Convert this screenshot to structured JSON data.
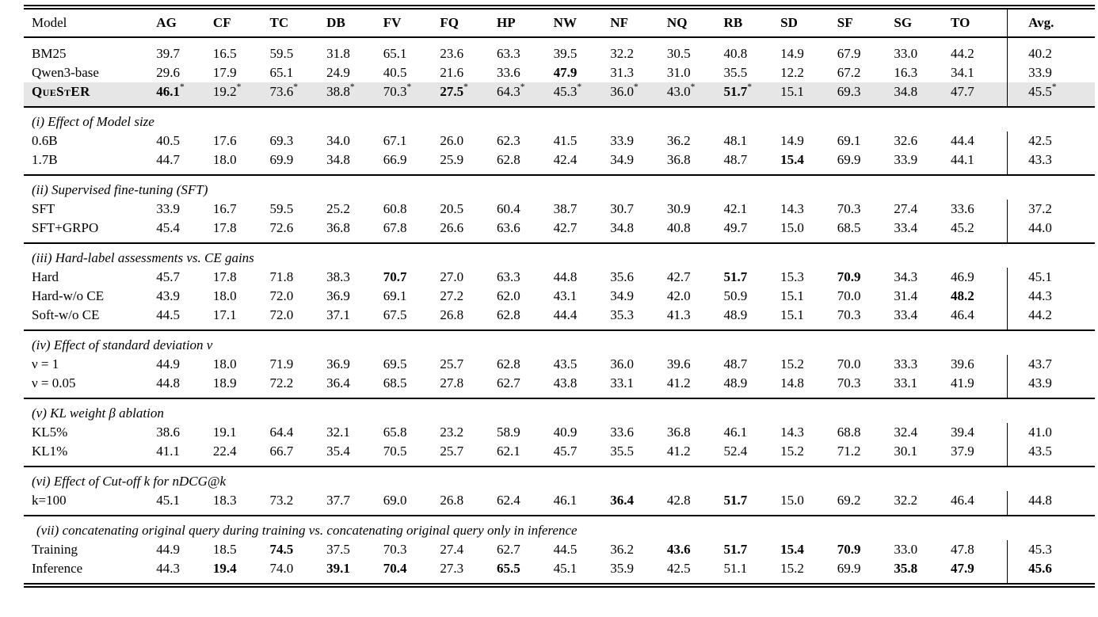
{
  "page": {
    "background_color": "#ffffff",
    "text_color": "#000000",
    "highlight_color": "#e6e6e6",
    "star_symbol": "*"
  },
  "table": {
    "header": {
      "model_col": "Model",
      "metric_cols": [
        "AG",
        "CF",
        "TC",
        "DB",
        "FV",
        "FQ",
        "HP",
        "NW",
        "NF",
        "NQ",
        "RB",
        "SD",
        "SF",
        "SG",
        "TO"
      ],
      "avg_col": "Avg."
    },
    "sections": [
      {
        "title": "",
        "rows": [
          {
            "label": "BM25",
            "values": [
              "39.7",
              "16.5",
              "59.5",
              "31.8",
              "65.1",
              "23.6",
              "63.3",
              "39.5",
              "32.2",
              "30.5",
              "40.8",
              "14.9",
              "67.9",
              "33.0",
              "44.2",
              "40.2"
            ],
            "bold": [],
            "star": []
          },
          {
            "label": "Qwen3-base",
            "values": [
              "29.6",
              "17.9",
              "65.1",
              "24.9",
              "40.5",
              "21.6",
              "33.6",
              "47.9",
              "31.3",
              "31.0",
              "35.5",
              "12.2",
              "67.2",
              "16.3",
              "34.1",
              "33.9"
            ],
            "bold": [
              7
            ],
            "star": []
          },
          {
            "label": "QueStER",
            "smallcaps": true,
            "bold_label": true,
            "highlight": true,
            "values": [
              "46.1",
              "19.2",
              "73.6",
              "38.8",
              "70.3",
              "27.5",
              "64.3",
              "45.3",
              "36.0",
              "43.0",
              "51.7",
              "15.1",
              "69.3",
              "34.8",
              "47.7",
              "45.5"
            ],
            "bold": [
              0,
              5,
              10
            ],
            "star": [
              0,
              1,
              2,
              3,
              4,
              5,
              6,
              7,
              8,
              9,
              10,
              15
            ]
          }
        ]
      },
      {
        "title": "(i) Effect of Model size",
        "rows": [
          {
            "label": "0.6B",
            "values": [
              "40.5",
              "17.6",
              "69.3",
              "34.0",
              "67.1",
              "26.0",
              "62.3",
              "41.5",
              "33.9",
              "36.2",
              "48.1",
              "14.9",
              "69.1",
              "32.6",
              "44.4",
              "42.5"
            ],
            "bold": [],
            "star": []
          },
          {
            "label": "1.7B",
            "values": [
              "44.7",
              "18.0",
              "69.9",
              "34.8",
              "66.9",
              "25.9",
              "62.8",
              "42.4",
              "34.9",
              "36.8",
              "48.7",
              "15.4",
              "69.9",
              "33.9",
              "44.1",
              "43.3"
            ],
            "bold": [
              11
            ],
            "star": []
          }
        ]
      },
      {
        "title": "(ii) Supervised fine-tuning (SFT)",
        "rows": [
          {
            "label": "SFT",
            "values": [
              "33.9",
              "16.7",
              "59.5",
              "25.2",
              "60.8",
              "20.5",
              "60.4",
              "38.7",
              "30.7",
              "30.9",
              "42.1",
              "14.3",
              "70.3",
              "27.4",
              "33.6",
              "37.2"
            ],
            "bold": [],
            "star": []
          },
          {
            "label": "SFT+GRPO",
            "values": [
              "45.4",
              "17.8",
              "72.6",
              "36.8",
              "67.8",
              "26.6",
              "63.6",
              "42.7",
              "34.8",
              "40.8",
              "49.7",
              "15.0",
              "68.5",
              "33.4",
              "45.2",
              "44.0"
            ],
            "bold": [],
            "star": []
          }
        ]
      },
      {
        "title": "(iii) Hard-label assessments vs. CE gains",
        "rows": [
          {
            "label": "Hard",
            "values": [
              "45.7",
              "17.8",
              "71.8",
              "38.3",
              "70.7",
              "27.0",
              "63.3",
              "44.8",
              "35.6",
              "42.7",
              "51.7",
              "15.3",
              "70.9",
              "34.3",
              "46.9",
              "45.1"
            ],
            "bold": [
              4,
              10,
              12
            ],
            "star": []
          },
          {
            "label": "Hard-w/o CE",
            "values": [
              "43.9",
              "18.0",
              "72.0",
              "36.9",
              "69.1",
              "27.2",
              "62.0",
              "43.1",
              "34.9",
              "42.0",
              "50.9",
              "15.1",
              "70.0",
              "31.4",
              "48.2",
              "44.3"
            ],
            "bold": [
              14
            ],
            "star": []
          },
          {
            "label": "Soft-w/o CE",
            "values": [
              "44.5",
              "17.1",
              "72.0",
              "37.1",
              "67.5",
              "26.8",
              "62.8",
              "44.4",
              "35.3",
              "41.3",
              "48.9",
              "15.1",
              "70.3",
              "33.4",
              "46.4",
              "44.2"
            ],
            "bold": [],
            "star": []
          }
        ]
      },
      {
        "title": "(iv) Effect of standard deviation ν",
        "rows": [
          {
            "label": "ν = 1",
            "values": [
              "44.9",
              "18.0",
              "71.9",
              "36.9",
              "69.5",
              "25.7",
              "62.8",
              "43.5",
              "36.0",
              "39.6",
              "48.7",
              "15.2",
              "70.0",
              "33.3",
              "39.6",
              "43.7"
            ],
            "bold": [],
            "star": []
          },
          {
            "label": "ν = 0.05",
            "values": [
              "44.8",
              "18.9",
              "72.2",
              "36.4",
              "68.5",
              "27.8",
              "62.7",
              "43.8",
              "33.1",
              "41.2",
              "48.9",
              "14.8",
              "70.3",
              "33.1",
              "41.9",
              "43.9"
            ],
            "bold": [],
            "star": []
          }
        ]
      },
      {
        "title": "(v) KL weight β ablation",
        "rows": [
          {
            "label": "KL5%",
            "values": [
              "38.6",
              "19.1",
              "64.4",
              "32.1",
              "65.8",
              "23.2",
              "58.9",
              "40.9",
              "33.6",
              "36.8",
              "46.1",
              "14.3",
              "68.8",
              "32.4",
              "39.4",
              "41.0"
            ],
            "bold": [],
            "star": []
          },
          {
            "label": "KL1%",
            "values": [
              "41.1",
              "22.4",
              "66.7",
              "35.4",
              "70.5",
              "25.7",
              "62.1",
              "45.7",
              "35.5",
              "41.2",
              "52.4",
              "15.2",
              "71.2",
              "30.1",
              "37.9",
              "43.5"
            ],
            "bold": [],
            "star": []
          }
        ]
      },
      {
        "title": "(vi) Effect of Cut-off k for nDCG@k",
        "rows": [
          {
            "label": "k=100",
            "values": [
              "45.1",
              "18.3",
              "73.2",
              "37.7",
              "69.0",
              "26.8",
              "62.4",
              "46.1",
              "36.4",
              "42.8",
              "51.7",
              "15.0",
              "69.2",
              "32.2",
              "46.4",
              "44.8"
            ],
            "bold": [
              8,
              10
            ],
            "star": []
          }
        ]
      },
      {
        "title": "(vii) concatenating original query during training vs. concatenating original query only in inference",
        "indent": true,
        "rows": [
          {
            "label": "Training",
            "values": [
              "44.9",
              "18.5",
              "74.5",
              "37.5",
              "70.3",
              "27.4",
              "62.7",
              "44.5",
              "36.2",
              "43.6",
              "51.7",
              "15.4",
              "70.9",
              "33.0",
              "47.8",
              "45.3"
            ],
            "bold": [
              2,
              9,
              10,
              11,
              12
            ],
            "star": []
          },
          {
            "label": "Inference",
            "values": [
              "44.3",
              "19.4",
              "74.0",
              "39.1",
              "70.4",
              "27.3",
              "65.5",
              "45.1",
              "35.9",
              "42.5",
              "51.1",
              "15.2",
              "69.9",
              "35.8",
              "47.9",
              "45.6"
            ],
            "bold": [
              1,
              3,
              4,
              6,
              13,
              14,
              15
            ],
            "star": []
          }
        ]
      }
    ]
  }
}
